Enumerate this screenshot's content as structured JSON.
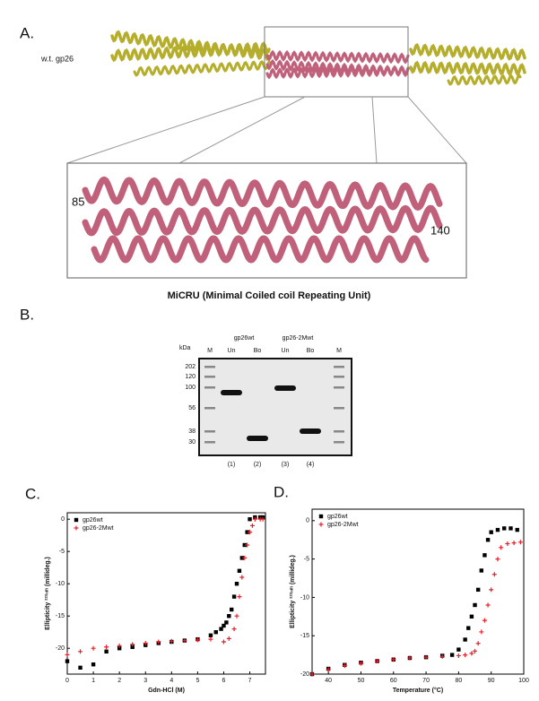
{
  "panel_a": {
    "label": "A.",
    "protein_label": "w.t. gp26",
    "residue_start": "85",
    "residue_end": "140",
    "caption": "MiCRU (Minimal Coiled coil Repeating Unit)"
  },
  "panel_b": {
    "label": "B.",
    "kda": "kDa",
    "markers": [
      "202",
      "120",
      "100",
      "56",
      "38",
      "30"
    ],
    "groups": [
      "gp26wt",
      "gp26-2Mwt"
    ],
    "lanes": [
      "M",
      "Un",
      "Bo",
      "Un",
      "Bo",
      "M"
    ],
    "lane_numbers": [
      "(1)",
      "(2)",
      "(3)",
      "(4)"
    ]
  },
  "chart_data": [
    {
      "type": "scatter",
      "panel_label": "C.",
      "xlabel": "Gdn-HCl (M)",
      "ylabel": "Ellipticity ²²²ⁿᵐ (millideg.)",
      "xlim": [
        0,
        7.6
      ],
      "xticks": [
        0,
        1,
        2,
        3,
        4,
        5,
        6,
        7
      ],
      "ylim": [
        -24,
        1
      ],
      "yticks": [
        0,
        -5,
        -10,
        -15,
        -20
      ],
      "legend": "upper left",
      "series": [
        {
          "name": "gp26wt",
          "color": "#000000",
          "marker": "square",
          "x": [
            0,
            0.5,
            1,
            1.5,
            2,
            2.5,
            3,
            3.5,
            4,
            4.5,
            5,
            5.5,
            5.7,
            5.9,
            6.0,
            6.1,
            6.2,
            6.3,
            6.4,
            6.5,
            6.6,
            6.7,
            6.8,
            6.9,
            7.0,
            7.2,
            7.4,
            7.5
          ],
          "values": [
            -22,
            -23,
            -22.5,
            -20.5,
            -20,
            -19.8,
            -19.5,
            -19.2,
            -19,
            -18.8,
            -18.6,
            -18,
            -17.5,
            -17,
            -16.5,
            -16,
            -15,
            -14,
            -12,
            -10,
            -8,
            -6,
            -4,
            -2,
            0,
            0.3,
            0.3,
            0.3
          ]
        },
        {
          "name": "gp26-2Mwt",
          "color": "#e8202a",
          "marker": "plus",
          "x": [
            0,
            0.5,
            1,
            1.5,
            2,
            2.5,
            3,
            3.5,
            4,
            4.5,
            5,
            5.5,
            6,
            6.2,
            6.4,
            6.5,
            6.6,
            6.7,
            6.8,
            6.9,
            7.0,
            7.1,
            7.2,
            7.4,
            7.5
          ],
          "values": [
            -21,
            -20.5,
            -20,
            -19.8,
            -19.6,
            -19.4,
            -19.2,
            -19,
            -18.9,
            -18.8,
            -18.7,
            -18.6,
            -19,
            -18.5,
            -17,
            -15,
            -12,
            -9,
            -6,
            -4,
            -2,
            -1,
            0,
            0,
            0
          ]
        }
      ]
    },
    {
      "type": "scatter",
      "panel_label": "D.",
      "xlabel": "Temperature (°C)",
      "ylabel": "Ellipticity ²²²ⁿᵐ (millideg.)",
      "xlim": [
        35,
        100
      ],
      "xticks": [
        40,
        50,
        60,
        70,
        80,
        90,
        100
      ],
      "ylim": [
        -20,
        1.5
      ],
      "yticks": [
        0,
        -5,
        -10,
        -15,
        -20
      ],
      "legend": "upper left",
      "series": [
        {
          "name": "gp26wt",
          "color": "#000000",
          "marker": "square",
          "x": [
            35,
            40,
            45,
            50,
            55,
            60,
            65,
            70,
            75,
            78,
            80,
            82,
            83,
            84,
            85,
            86,
            87,
            88,
            89,
            90,
            92,
            94,
            96,
            98
          ],
          "values": [
            -20,
            -19.3,
            -18.8,
            -18.5,
            -18.3,
            -18.1,
            -17.9,
            -17.8,
            -17.6,
            -17.5,
            -16.8,
            -15.5,
            -14,
            -12.5,
            -11,
            -9,
            -6.5,
            -4.5,
            -2.5,
            -1.5,
            -1.2,
            -1,
            -1,
            -1.2
          ]
        },
        {
          "name": "gp26-2Mwt",
          "color": "#e8202a",
          "marker": "plus",
          "x": [
            35,
            40,
            45,
            50,
            55,
            60,
            65,
            70,
            75,
            80,
            82,
            84,
            85,
            86,
            87,
            88,
            89,
            90,
            91,
            92,
            93,
            95,
            97,
            99
          ],
          "values": [
            -20,
            -19.4,
            -18.9,
            -18.6,
            -18.3,
            -18.1,
            -17.9,
            -17.8,
            -17.7,
            -17.6,
            -17.5,
            -17.3,
            -17,
            -16,
            -14.5,
            -13,
            -11,
            -9,
            -7,
            -5,
            -3.5,
            -3,
            -2.9,
            -2.8
          ]
        }
      ]
    }
  ]
}
